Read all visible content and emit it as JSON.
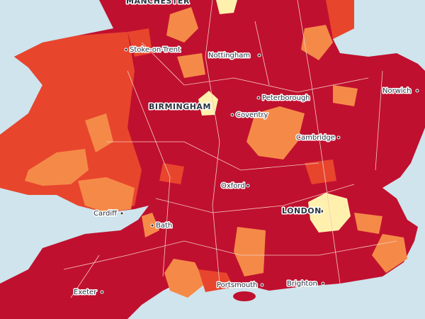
{
  "labels": {
    "manchester": "MANCHESTER",
    "stoke": "Stoke-on-Trent",
    "nottingham": "Nottingham",
    "norwich": "Norwich",
    "peterborough": "Peterborough",
    "birmingham": "BIRMINGHAM",
    "coventry": "Coventry",
    "cambridge": "Cambridge",
    "oxford": "Oxford",
    "london": "LONDON",
    "cardiff": "Cardiff",
    "bath": "Bath",
    "exeter": "Exeter",
    "portsmouth": "Portsmouth",
    "brighton": "Brighton"
  }
}
